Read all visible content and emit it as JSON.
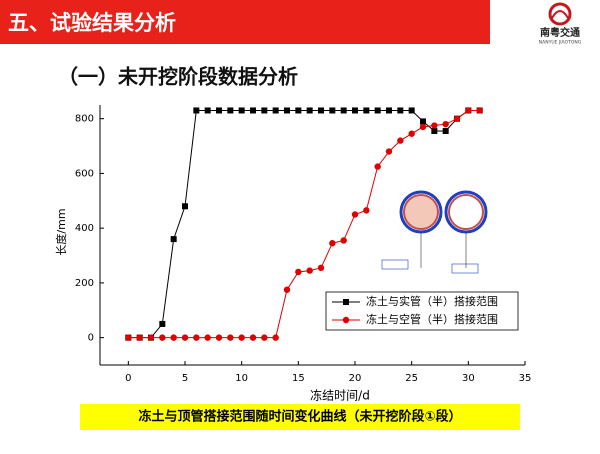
{
  "header": {
    "title": "五、试验结果分析",
    "logo_name": "南粤交通",
    "logo_sub": "NANYUE JIAOTONG"
  },
  "subtitle": "（一）未开挖阶段数据分析",
  "chart_data": {
    "type": "line",
    "xlabel": "冻结时间/d",
    "ylabel": "长度/mm",
    "caption": "冻土与顶管搭接范围随时间变化曲线（未开挖阶段①段）",
    "x": [
      0,
      1,
      2,
      3,
      4,
      5,
      6,
      7,
      8,
      9,
      10,
      11,
      12,
      13,
      14,
      15,
      16,
      17,
      18,
      19,
      20,
      21,
      22,
      23,
      24,
      25,
      26,
      27,
      28,
      29,
      30,
      31
    ],
    "series": [
      {
        "name": "冻土与实管（半）搭接范围",
        "color": "#000000",
        "marker": "square",
        "values": [
          0,
          0,
          0,
          50,
          360,
          480,
          830,
          830,
          830,
          830,
          830,
          830,
          830,
          830,
          830,
          830,
          830,
          830,
          830,
          830,
          830,
          830,
          830,
          830,
          830,
          830,
          790,
          755,
          755,
          800,
          830,
          830
        ]
      },
      {
        "name": "冻土与空管（半）搭接范围",
        "color": "#e00000",
        "marker": "circle",
        "values": [
          0,
          0,
          0,
          0,
          0,
          0,
          0,
          0,
          0,
          0,
          0,
          0,
          0,
          0,
          175,
          240,
          245,
          255,
          345,
          355,
          450,
          465,
          625,
          680,
          720,
          745,
          770,
          775,
          780,
          800,
          830,
          830
        ]
      }
    ],
    "xlim": [
      -2.5,
      35
    ],
    "ylim": [
      -100,
      850
    ],
    "xticks": [
      0,
      5,
      10,
      15,
      20,
      25,
      30,
      35
    ],
    "yticks": [
      0,
      200,
      400,
      600,
      800
    ],
    "legend": "lower-right"
  }
}
